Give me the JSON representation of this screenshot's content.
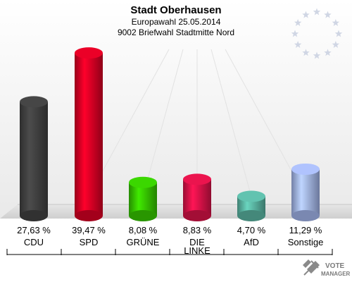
{
  "chart_data": {
    "type": "bar",
    "title": "Stadt Oberhausen",
    "subtitle": "Europawahl 25.05.2014",
    "subtitle2": "9002 Briefwahl Stadtmitte Nord",
    "categories": [
      "CDU",
      "SPD",
      "GRÜNE",
      "DIE LINKE",
      "AfD",
      "Sonstige"
    ],
    "category_lines": [
      [
        "CDU"
      ],
      [
        "SPD"
      ],
      [
        "GRÜNE"
      ],
      [
        "DIE",
        "LINKE"
      ],
      [
        "AfD"
      ],
      [
        "Sonstige"
      ]
    ],
    "values": [
      27.63,
      39.47,
      8.08,
      8.83,
      4.7,
      11.29
    ],
    "value_labels": [
      "27,63 %",
      "39,47 %",
      "8,08 %",
      "8,83 %",
      "4,70 %",
      "11,29 %"
    ],
    "colors": [
      "#3d3d3d",
      "#cc0022",
      "#33bb00",
      "#cc1144",
      "#55aa99",
      "#99aadd"
    ],
    "ylim": [
      0,
      40
    ],
    "grid": false,
    "legend": "none"
  },
  "logo": {
    "line1": "VOTE",
    "line2": "MANAGER",
    "icon": "vote-manager-logo-icon"
  },
  "decoration": {
    "icon": "eu-stars-icon",
    "color": "#d0d6e4"
  }
}
